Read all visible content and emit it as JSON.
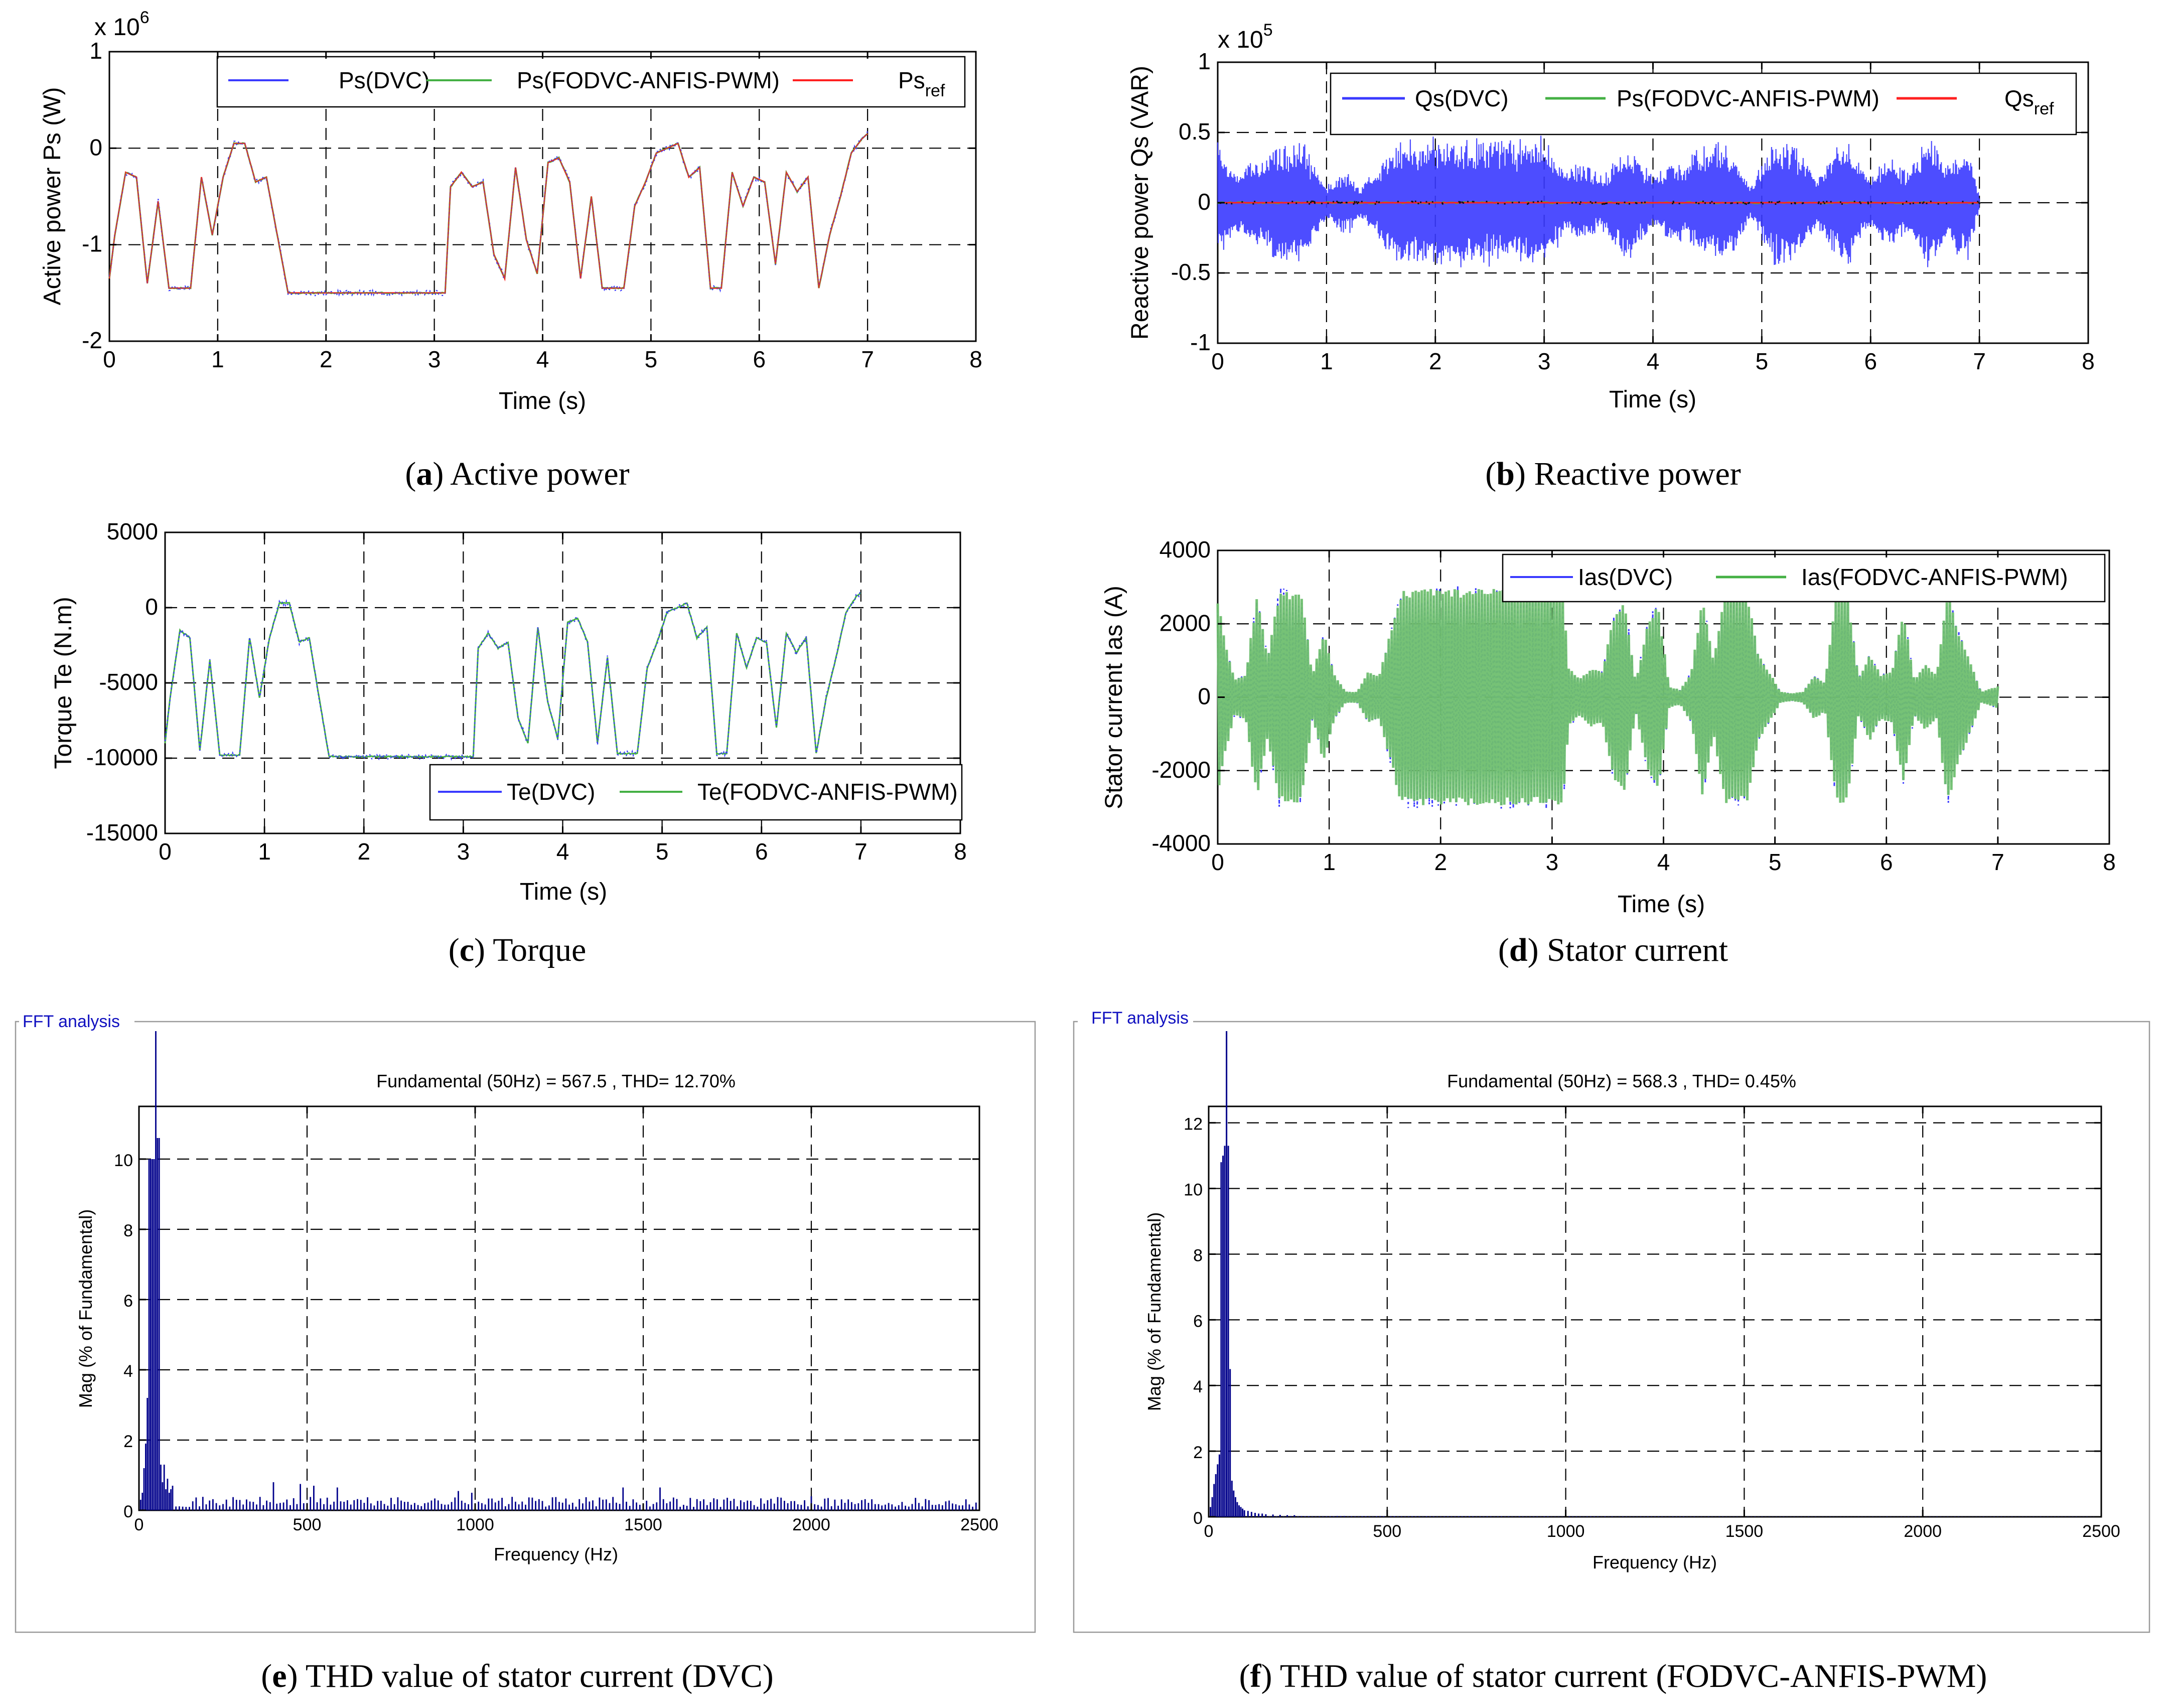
{
  "colors": {
    "dvc": "#3a3aff",
    "fodvc": "#44b044",
    "fodvc_fill": "#6fbf6f",
    "ref": "#ff2020",
    "fft_bar": "#00008b",
    "fft_title": "#1010c0"
  },
  "chart_data": [
    {
      "id": "a",
      "type": "line",
      "caption_letter": "a",
      "caption_text": " Active power",
      "xlabel": "Time (s)",
      "ylabel": "Active power Ps (W)",
      "exponent_prefix": "x 10",
      "exponent_power": "6",
      "xlim": [
        0,
        8
      ],
      "ylim": [
        -2,
        1
      ],
      "xticks": [
        "0",
        "1",
        "2",
        "3",
        "4",
        "5",
        "6",
        "7",
        "8"
      ],
      "yticks": [
        "-2",
        "-1",
        "0",
        "1"
      ],
      "legend": [
        {
          "label": "Ps(DVC)",
          "sub": ""
        },
        {
          "label": "Ps(FODVC-ANFIS-PWM)",
          "sub": ""
        },
        {
          "label": "Ps",
          "sub": "ref"
        }
      ],
      "series": [
        {
          "name": "Ps(DVC)",
          "color_key": "dvc"
        },
        {
          "name": "Ps(FODVC-ANFIS-PWM)",
          "color_key": "fodvc"
        },
        {
          "name": "Ps_ref",
          "color_key": "ref"
        }
      ],
      "profile_x": [
        0,
        0.05,
        0.15,
        0.25,
        0.35,
        0.45,
        0.55,
        0.65,
        0.75,
        0.85,
        0.95,
        1.05,
        1.15,
        1.25,
        1.35,
        1.45,
        1.55,
        1.65,
        1.75,
        2.0,
        2.5,
        3.0,
        3.1,
        3.15,
        3.25,
        3.35,
        3.45,
        3.55,
        3.65,
        3.75,
        3.85,
        3.95,
        4.05,
        4.15,
        4.25,
        4.35,
        4.45,
        4.55,
        4.65,
        4.75,
        4.85,
        4.95,
        5.05,
        5.15,
        5.25,
        5.35,
        5.45,
        5.55,
        5.65,
        5.75,
        5.85,
        5.95,
        6.05,
        6.15,
        6.25,
        6.35,
        6.45,
        6.55,
        6.65,
        6.75,
        6.85,
        6.95,
        7.0
      ],
      "profile_y": [
        -1.35,
        -0.9,
        -0.25,
        -0.3,
        -1.4,
        -0.55,
        -1.45,
        -1.45,
        -1.45,
        -0.3,
        -0.9,
        -0.3,
        0.05,
        0.05,
        -0.35,
        -0.3,
        -0.9,
        -1.5,
        -1.5,
        -1.5,
        -1.5,
        -1.5,
        -1.5,
        -0.4,
        -0.25,
        -0.4,
        -0.35,
        -1.1,
        -1.35,
        -0.2,
        -0.95,
        -1.3,
        -0.15,
        -0.1,
        -0.35,
        -1.35,
        -0.5,
        -1.45,
        -1.45,
        -1.45,
        -0.6,
        -0.35,
        -0.05,
        0.0,
        0.05,
        -0.3,
        -0.2,
        -1.45,
        -1.45,
        -0.25,
        -0.6,
        -0.3,
        -0.35,
        -1.2,
        -0.25,
        -0.45,
        -0.3,
        -1.45,
        -0.9,
        -0.5,
        -0.05,
        0.1,
        0.15
      ]
    },
    {
      "id": "b",
      "type": "line",
      "caption_letter": "b",
      "caption_text": " Reactive power",
      "xlabel": "Time (s)",
      "ylabel": "Reactive power Qs (VAR)",
      "exponent_prefix": "x 10",
      "exponent_power": "5",
      "xlim": [
        0,
        8
      ],
      "ylim": [
        -1,
        1
      ],
      "xticks": [
        "0",
        "1",
        "2",
        "3",
        "4",
        "5",
        "6",
        "7",
        "8"
      ],
      "yticks": [
        "-1",
        "-0.5",
        "0",
        "0.5",
        "1"
      ],
      "legend": [
        {
          "label": "Qs(DVC)",
          "sub": ""
        },
        {
          "label": "Ps(FODVC-ANFIS-PWM)",
          "sub": ""
        },
        {
          "label": "Qs",
          "sub": "ref"
        }
      ],
      "series": [
        {
          "name": "Qs(DVC)",
          "color_key": "dvc"
        },
        {
          "name": "Ps(FODVC-ANFIS-PWM)",
          "color_key": "fodvc"
        },
        {
          "name": "Qs_ref",
          "color_key": "ref"
        }
      ],
      "envelope_x": [
        0,
        0.1,
        0.2,
        0.3,
        0.4,
        0.5,
        0.6,
        0.7,
        0.8,
        0.9,
        1.0,
        1.1,
        1.2,
        1.3,
        1.4,
        1.5,
        1.6,
        1.7,
        2.0,
        2.5,
        3.0,
        3.1,
        3.2,
        3.3,
        3.4,
        3.5,
        3.6,
        3.7,
        3.8,
        3.9,
        4.0,
        4.1,
        4.2,
        4.3,
        4.4,
        4.5,
        4.6,
        4.7,
        4.8,
        4.9,
        5.0,
        5.1,
        5.2,
        5.3,
        5.4,
        5.5,
        5.6,
        5.7,
        5.8,
        5.9,
        6.0,
        6.1,
        6.2,
        6.3,
        6.4,
        6.5,
        6.6,
        6.7,
        6.8,
        6.9,
        7.0
      ],
      "envelope_amp": [
        0.45,
        0.3,
        0.22,
        0.35,
        0.3,
        0.42,
        0.45,
        0.48,
        0.45,
        0.25,
        0.12,
        0.2,
        0.25,
        0.12,
        0.2,
        0.3,
        0.45,
        0.48,
        0.48,
        0.48,
        0.48,
        0.35,
        0.25,
        0.3,
        0.3,
        0.2,
        0.25,
        0.42,
        0.45,
        0.3,
        0.2,
        0.25,
        0.35,
        0.25,
        0.42,
        0.45,
        0.45,
        0.42,
        0.3,
        0.12,
        0.3,
        0.45,
        0.48,
        0.45,
        0.35,
        0.2,
        0.3,
        0.45,
        0.48,
        0.3,
        0.2,
        0.3,
        0.35,
        0.25,
        0.3,
        0.48,
        0.45,
        0.3,
        0.4,
        0.42,
        0.05
      ]
    },
    {
      "id": "c",
      "type": "line",
      "caption_letter": "c",
      "caption_text": " Torque",
      "xlabel": "Time (s)",
      "ylabel": "Torque Te (N.m)",
      "xlim": [
        0,
        8
      ],
      "ylim": [
        -15000,
        5000
      ],
      "xticks": [
        "0",
        "1",
        "2",
        "3",
        "4",
        "5",
        "6",
        "7",
        "8"
      ],
      "yticks": [
        "-15000",
        "-10000",
        "-5000",
        "0",
        "5000"
      ],
      "legend": [
        {
          "label": "Te(DVC)",
          "sub": ""
        },
        {
          "label": "Te(FODVC-ANFIS-PWM)",
          "sub": ""
        }
      ],
      "series": [
        {
          "name": "Te(DVC)",
          "color_key": "dvc"
        },
        {
          "name": "Te(FODVC-ANFIS-PWM)",
          "color_key": "fodvc"
        }
      ],
      "profile_x": [
        0,
        0.05,
        0.15,
        0.25,
        0.35,
        0.45,
        0.55,
        0.65,
        0.75,
        0.85,
        0.95,
        1.05,
        1.15,
        1.25,
        1.35,
        1.45,
        1.55,
        1.65,
        1.75,
        2.0,
        2.5,
        3.0,
        3.1,
        3.15,
        3.25,
        3.35,
        3.45,
        3.55,
        3.65,
        3.75,
        3.85,
        3.95,
        4.05,
        4.15,
        4.25,
        4.35,
        4.45,
        4.55,
        4.65,
        4.75,
        4.85,
        4.95,
        5.05,
        5.15,
        5.25,
        5.35,
        5.45,
        5.55,
        5.65,
        5.75,
        5.85,
        5.95,
        6.05,
        6.15,
        6.25,
        6.35,
        6.45,
        6.55,
        6.65,
        6.75,
        6.85,
        6.95,
        7.0
      ],
      "profile_y": [
        -9000,
        -6000,
        -1500,
        -2000,
        -9500,
        -3500,
        -9800,
        -9800,
        -9800,
        -2000,
        -6000,
        -2000,
        300,
        300,
        -2300,
        -2000,
        -6000,
        -9900,
        -9900,
        -9900,
        -9900,
        -9900,
        -9900,
        -2700,
        -1700,
        -2700,
        -2300,
        -7300,
        -9000,
        -1300,
        -6300,
        -8700,
        -1000,
        -700,
        -2300,
        -9000,
        -3300,
        -9700,
        -9700,
        -9700,
        -4000,
        -2300,
        -300,
        0,
        300,
        -2000,
        -1300,
        -9700,
        -9700,
        -1700,
        -4000,
        -2000,
        -2300,
        -8000,
        -1700,
        -3000,
        -2000,
        -9700,
        -6000,
        -3300,
        -300,
        700,
        1000
      ]
    },
    {
      "id": "d",
      "type": "line",
      "caption_letter": "d",
      "caption_text": " Stator current",
      "xlabel": "Time (s)",
      "ylabel": "Stator current Ias (A)",
      "xlim": [
        0,
        8
      ],
      "ylim": [
        -4000,
        4000
      ],
      "xticks": [
        "0",
        "1",
        "2",
        "3",
        "4",
        "5",
        "6",
        "7",
        "8"
      ],
      "yticks": [
        "-4000",
        "-2000",
        "0",
        "2000",
        "4000"
      ],
      "legend": [
        {
          "label": "Ias(DVC)",
          "sub": ""
        },
        {
          "label": "Ias(FODVC-ANFIS-PWM)",
          "sub": ""
        }
      ],
      "series": [
        {
          "name": "Ias(DVC)",
          "color_key": "dvc"
        },
        {
          "name": "Ias(FODVC-ANFIS-PWM)",
          "color_key": "fodvc"
        }
      ],
      "envelope_x": [
        0,
        0.05,
        0.15,
        0.25,
        0.35,
        0.45,
        0.55,
        0.65,
        0.75,
        0.85,
        0.95,
        1.05,
        1.15,
        1.25,
        1.35,
        1.45,
        1.55,
        1.65,
        1.75,
        2.0,
        2.5,
        3.0,
        3.1,
        3.15,
        3.25,
        3.35,
        3.45,
        3.55,
        3.65,
        3.75,
        3.85,
        3.95,
        4.05,
        4.15,
        4.25,
        4.35,
        4.45,
        4.55,
        4.65,
        4.75,
        4.85,
        4.95,
        5.05,
        5.15,
        5.25,
        5.35,
        5.45,
        5.55,
        5.65,
        5.75,
        5.85,
        5.95,
        6.05,
        6.15,
        6.25,
        6.35,
        6.45,
        6.55,
        6.65,
        6.75,
        6.85,
        6.95,
        7.0
      ],
      "envelope_amp": [
        2700,
        1800,
        500,
        600,
        2800,
        1100,
        2900,
        2900,
        2900,
        600,
        1800,
        600,
        150,
        150,
        700,
        600,
        1800,
        2950,
        2950,
        2950,
        2950,
        2950,
        2950,
        800,
        500,
        800,
        700,
        2200,
        2700,
        400,
        1900,
        2600,
        300,
        200,
        700,
        2700,
        1000,
        2900,
        2900,
        2900,
        1200,
        700,
        150,
        100,
        150,
        600,
        400,
        2900,
        2900,
        500,
        1200,
        600,
        700,
        2400,
        500,
        900,
        600,
        2900,
        1800,
        1000,
        150,
        250,
        300
      ]
    },
    {
      "id": "e",
      "type": "bar",
      "caption_letter": "e",
      "caption_text": " THD value of stator current (DVC)",
      "panel_title": "FFT analysis",
      "annotation": "Fundamental (50Hz) = 567.5 , THD= 12.70%",
      "xlabel": "Frequency (Hz)",
      "ylabel": "Mag (% of Fundamental)",
      "xlim": [
        0,
        2500
      ],
      "ylim": [
        0,
        11.5
      ],
      "xticks": [
        "0",
        "500",
        "1000",
        "1500",
        "2000",
        "2500"
      ],
      "yticks": [
        "0",
        "2",
        "4",
        "6",
        "8",
        "10"
      ],
      "fundamental_hz": 50,
      "low_bins_hz": [
        5,
        10,
        15,
        20,
        25,
        30,
        35,
        40,
        45,
        55,
        60,
        65,
        70,
        75,
        80,
        85,
        90,
        95,
        100
      ],
      "low_bins_mag": [
        0.3,
        0.5,
        1.2,
        1.9,
        3.2,
        10.0,
        10.0,
        10.0,
        10.0,
        10.6,
        10.6,
        1.3,
        0.8,
        1.3,
        0.6,
        0.9,
        0.5,
        0.6,
        0.7
      ],
      "noise_base": 0.32,
      "noise_peaks_hz": [
        400,
        480,
        520,
        590,
        950,
        990,
        1440,
        1550,
        2000,
        2050
      ],
      "noise_peaks_mag": [
        0.8,
        0.75,
        0.7,
        0.65,
        0.55,
        0.5,
        0.65,
        0.65,
        0.4,
        0.35
      ]
    },
    {
      "id": "f",
      "type": "bar",
      "caption_letter": "f",
      "caption_text": " THD value of stator current (FODVC-ANFIS-PWM)",
      "panel_title": "FFT analysis",
      "annotation": "Fundamental (50Hz) = 568.3 , THD= 0.45%",
      "xlabel": "Frequency (Hz)",
      "ylabel": "Mag (% of Fundamental)",
      "xlim": [
        0,
        2500
      ],
      "ylim": [
        0,
        12.5
      ],
      "xticks": [
        "0",
        "500",
        "1000",
        "1500",
        "2000",
        "2500"
      ],
      "yticks": [
        "0",
        "2",
        "4",
        "6",
        "8",
        "10",
        "12"
      ],
      "fundamental_hz": 50,
      "low_bins_hz": [
        5,
        10,
        15,
        20,
        25,
        30,
        35,
        40,
        45,
        55,
        60,
        65,
        70,
        75,
        80,
        85,
        90,
        95,
        100,
        110,
        120,
        130,
        140,
        150,
        160,
        180,
        200,
        220,
        240
      ],
      "low_bins_mag": [
        0.3,
        0.6,
        1.0,
        1.3,
        1.6,
        1.9,
        10.8,
        11.0,
        11.3,
        11.3,
        4.5,
        1.1,
        0.8,
        0.6,
        0.45,
        0.35,
        0.3,
        0.25,
        0.2,
        0.18,
        0.15,
        0.12,
        0.1,
        0.1,
        0.08,
        0.07,
        0.06,
        0.05,
        0.05
      ],
      "noise_base": 0.03,
      "noise_peaks_hz": [],
      "noise_peaks_mag": []
    }
  ]
}
